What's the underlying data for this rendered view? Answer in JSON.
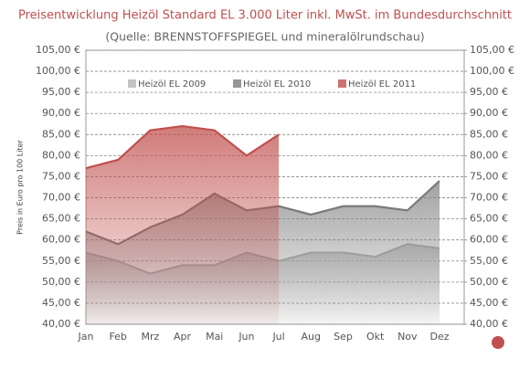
{
  "chart_data": {
    "type": "area",
    "title": "Preisentwicklung Heizöl Standard EL 3.000 Liter inkl. MwSt. im Bundesdurchschnitt",
    "subtitle": "(Quelle: BRENNSTOFFSPIEGEL und mineralölrundschau)",
    "y_label": "Preis in Euro pro 100 Liter",
    "categories": [
      "Jan",
      "Feb",
      "Mrz",
      "Apr",
      "Mai",
      "Jun",
      "Jul",
      "Aug",
      "Sep",
      "Okt",
      "Nov",
      "Dez"
    ],
    "series": [
      {
        "name": "Heizöl EL 2009",
        "color": "#b4b4b4",
        "values": [
          57,
          55,
          52,
          54,
          54,
          57,
          55,
          57,
          57,
          56,
          59,
          58
        ]
      },
      {
        "name": "Heizöl EL 2010",
        "color": "#7a7a7a",
        "values": [
          62,
          59,
          63,
          66,
          71,
          67,
          68,
          66,
          68,
          68,
          67,
          74
        ]
      },
      {
        "name": "Heizöl EL 2011",
        "color": "#c0504d",
        "values": [
          77,
          79,
          86,
          87,
          86,
          80,
          85,
          null,
          null,
          null,
          null,
          null
        ]
      }
    ],
    "ylim": [
      40,
      105
    ],
    "yticks": [
      {
        "value": 40,
        "label": "40,00 €"
      },
      {
        "value": 45,
        "label": "45,00 €"
      },
      {
        "value": 50,
        "label": "50,00 €"
      },
      {
        "value": 55,
        "label": "55,00 €"
      },
      {
        "value": 60,
        "label": "60,00 €"
      },
      {
        "value": 65,
        "label": "65,00 €"
      },
      {
        "value": 70,
        "label": "70,00 €"
      },
      {
        "value": 75,
        "label": "75,00 €"
      },
      {
        "value": 80,
        "label": "80,00 €"
      },
      {
        "value": 85,
        "label": "85,00 €"
      },
      {
        "value": 90,
        "label": "90,00 €"
      },
      {
        "value": 95,
        "label": "95,00 €"
      },
      {
        "value": 100,
        "label": "100,00 €"
      },
      {
        "value": 105,
        "label": "105,00 €"
      }
    ],
    "y2lim": [
      40,
      105
    ],
    "y2ticks": [
      {
        "value": 40,
        "label": "40,00 €"
      },
      {
        "value": 45,
        "label": "45,00 €"
      },
      {
        "value": 50,
        "label": "50,00 €"
      },
      {
        "value": 55,
        "label": "55,00 €"
      },
      {
        "value": 60,
        "label": "60,00 €"
      },
      {
        "value": 65,
        "label": "65,00 €"
      },
      {
        "value": 70,
        "label": "70,00 €"
      },
      {
        "value": 75,
        "label": "75,00 €"
      },
      {
        "value": 80,
        "label": "80,00 €"
      },
      {
        "value": 85,
        "label": "85,00 €"
      },
      {
        "value": 90,
        "label": "90,00 €"
      },
      {
        "value": 95,
        "label": "95,00 €"
      },
      {
        "value": 100,
        "label": "100,00 €"
      },
      {
        "value": 105,
        "label": "105,00 €"
      }
    ],
    "grid": true
  }
}
